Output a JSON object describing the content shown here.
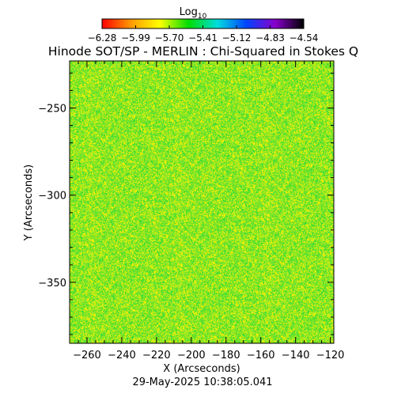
{
  "chart_data": {
    "type": "heatmap",
    "title": "Hinode SOT/SP - MERLIN : Chi-Squared in Stokes Q",
    "xlabel": "X (Arcseconds)",
    "ylabel": "Y (Arcseconds)",
    "xlim": [
      -270,
      -118
    ],
    "ylim": [
      -385,
      -223
    ],
    "x_ticks": [
      -260,
      -240,
      -220,
      -200,
      -180,
      -160,
      -140,
      -120
    ],
    "x_tick_labels": [
      "−260",
      "−240",
      "−220",
      "−200",
      "−180",
      "−160",
      "−140",
      "−120"
    ],
    "y_ticks": [
      -250,
      -300,
      -350
    ],
    "y_tick_labels": [
      "−250",
      "−300",
      "−350"
    ],
    "colorbar": {
      "title": "Log",
      "title_subscript": "10",
      "range": [
        -6.28,
        -4.54
      ],
      "tick_values": [
        -6.28,
        -5.99,
        -5.7,
        -5.41,
        -5.12,
        -4.83,
        -4.54
      ],
      "tick_labels": [
        "−6.28",
        "−5.99",
        "−5.70",
        "−5.41",
        "−5.12",
        "−4.83",
        "−4.54"
      ],
      "colormap": [
        "#ff0000",
        "#ff9900",
        "#ffff00",
        "#00dd00",
        "#00dddd",
        "#0044ff",
        "#8800cc",
        "#000000"
      ]
    },
    "map_appearance": {
      "description_colors": [
        "#44dd33",
        "#aaee22",
        "#ffee00"
      ],
      "typical_log_value_range": [
        -5.75,
        -5.45
      ]
    },
    "timestamp": "29-May-2025 10:38:05.041"
  }
}
